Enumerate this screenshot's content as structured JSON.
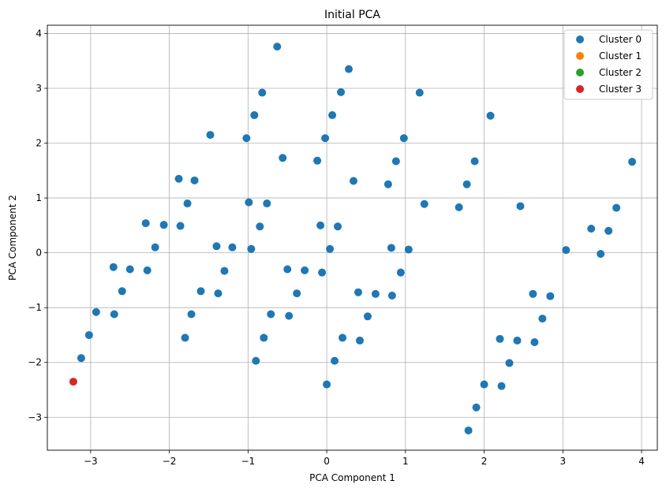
{
  "chart_data": {
    "type": "scatter",
    "title": "Initial PCA",
    "xlabel": "PCA Component 1",
    "ylabel": "PCA Component 2",
    "xlim": [
      -3.55,
      4.2
    ],
    "ylim": [
      -3.6,
      4.15
    ],
    "xticks": [
      -3,
      -2,
      -1,
      0,
      1,
      2,
      3,
      4
    ],
    "yticks": [
      -3,
      -2,
      -1,
      0,
      1,
      2,
      3,
      4
    ],
    "grid": true,
    "legend_position": "top-right",
    "series": [
      {
        "name": "Cluster 0",
        "color": "#1f77b4",
        "points": [
          [
            -3.12,
            -1.92
          ],
          [
            -3.02,
            -1.5
          ],
          [
            -2.93,
            -1.08
          ],
          [
            -2.7,
            -1.12
          ],
          [
            -2.71,
            -0.26
          ],
          [
            -2.6,
            -0.7
          ],
          [
            -2.5,
            -0.3
          ],
          [
            -2.3,
            0.54
          ],
          [
            -2.28,
            -0.32
          ],
          [
            -2.18,
            0.1
          ],
          [
            -2.07,
            0.51
          ],
          [
            -1.88,
            1.35
          ],
          [
            -1.86,
            0.49
          ],
          [
            -1.8,
            -1.55
          ],
          [
            -1.77,
            0.9
          ],
          [
            -1.72,
            -1.12
          ],
          [
            -1.68,
            1.32
          ],
          [
            -1.6,
            -0.7
          ],
          [
            -1.48,
            2.15
          ],
          [
            -1.4,
            0.12
          ],
          [
            -1.38,
            -0.74
          ],
          [
            -1.3,
            -0.33
          ],
          [
            -1.2,
            0.1
          ],
          [
            -1.02,
            2.09
          ],
          [
            -0.99,
            0.92
          ],
          [
            -0.96,
            0.07
          ],
          [
            -0.92,
            2.51
          ],
          [
            -0.9,
            -1.97
          ],
          [
            -0.85,
            0.48
          ],
          [
            -0.82,
            2.92
          ],
          [
            -0.8,
            -1.55
          ],
          [
            -0.76,
            0.9
          ],
          [
            -0.71,
            -1.12
          ],
          [
            -0.63,
            3.76
          ],
          [
            -0.56,
            1.73
          ],
          [
            -0.5,
            -0.3
          ],
          [
            -0.48,
            -1.15
          ],
          [
            -0.38,
            -0.74
          ],
          [
            -0.28,
            -0.32
          ],
          [
            -0.12,
            1.68
          ],
          [
            -0.08,
            0.5
          ],
          [
            -0.06,
            -0.36
          ],
          [
            -0.02,
            2.09
          ],
          [
            0.0,
            -2.4
          ],
          [
            0.04,
            0.07
          ],
          [
            0.07,
            2.51
          ],
          [
            0.1,
            -1.97
          ],
          [
            0.14,
            0.48
          ],
          [
            0.18,
            2.93
          ],
          [
            0.2,
            -1.55
          ],
          [
            0.28,
            3.35
          ],
          [
            0.34,
            1.31
          ],
          [
            0.4,
            -0.72
          ],
          [
            0.42,
            -1.6
          ],
          [
            0.52,
            -1.16
          ],
          [
            0.62,
            -0.75
          ],
          [
            0.78,
            1.25
          ],
          [
            0.82,
            0.09
          ],
          [
            0.83,
            -0.78
          ],
          [
            0.88,
            1.67
          ],
          [
            0.94,
            -0.36
          ],
          [
            0.98,
            2.09
          ],
          [
            1.04,
            0.06
          ],
          [
            1.18,
            2.92
          ],
          [
            1.24,
            0.89
          ],
          [
            1.68,
            0.83
          ],
          [
            1.8,
            -3.24
          ],
          [
            1.78,
            1.25
          ],
          [
            1.88,
            1.67
          ],
          [
            1.9,
            -2.82
          ],
          [
            2.0,
            -2.4
          ],
          [
            2.08,
            2.5
          ],
          [
            2.2,
            -1.57
          ],
          [
            2.22,
            -2.43
          ],
          [
            2.32,
            -2.01
          ],
          [
            2.42,
            -1.6
          ],
          [
            2.46,
            0.85
          ],
          [
            2.62,
            -0.75
          ],
          [
            2.64,
            -1.63
          ],
          [
            2.74,
            -1.2
          ],
          [
            2.84,
            -0.79
          ],
          [
            3.04,
            0.05
          ],
          [
            3.36,
            0.44
          ],
          [
            3.48,
            -0.02
          ],
          [
            3.58,
            0.4
          ],
          [
            3.68,
            0.82
          ],
          [
            3.88,
            1.66
          ]
        ]
      },
      {
        "name": "Cluster 1",
        "color": "#ff7f0e",
        "points": []
      },
      {
        "name": "Cluster 2",
        "color": "#2ca02c",
        "points": []
      },
      {
        "name": "Cluster 3",
        "color": "#d62728",
        "points": [
          [
            -3.22,
            -2.35
          ]
        ]
      }
    ]
  }
}
